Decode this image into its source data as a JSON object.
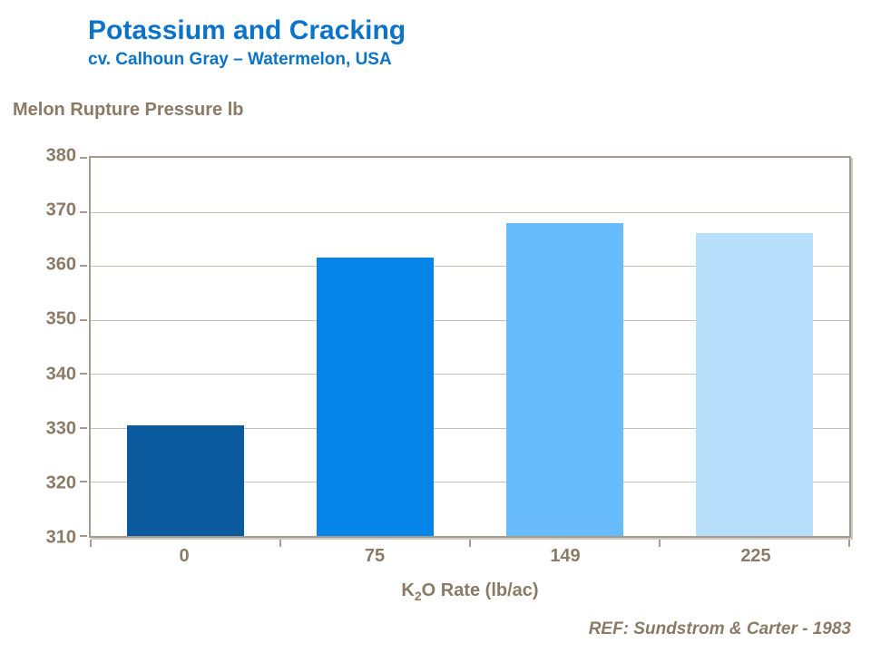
{
  "slide": {
    "title": "Potassium and Cracking",
    "subtitle": "cv. Calhoun Gray – Watermelon, USA",
    "reference": "REF: Sundstrom & Carter - 1983"
  },
  "chart_data": {
    "type": "bar",
    "title": "Melon Rupture Pressure lb",
    "ylabel": "Melon Rupture Pressure lb",
    "xlabel": {
      "prefix": "K",
      "sub": "2",
      "suffix": "O Rate (lb/ac)"
    },
    "categories": [
      "0",
      "75",
      "149",
      "225"
    ],
    "values": [
      330.5,
      361.5,
      368,
      366
    ],
    "ylim": [
      310,
      380
    ],
    "yticks": [
      310,
      320,
      330,
      340,
      350,
      360,
      370,
      380
    ],
    "grid": true,
    "legend": false,
    "bar_colors": [
      "#0B5A9D",
      "#0684E8",
      "#69BCFB",
      "#B7DEFB"
    ]
  },
  "colors": {
    "title_blue": "#0B73C8",
    "label_taupe": "#8A7A66",
    "axis_line": "#A79B8F",
    "gridline": "#C9BFB5"
  }
}
